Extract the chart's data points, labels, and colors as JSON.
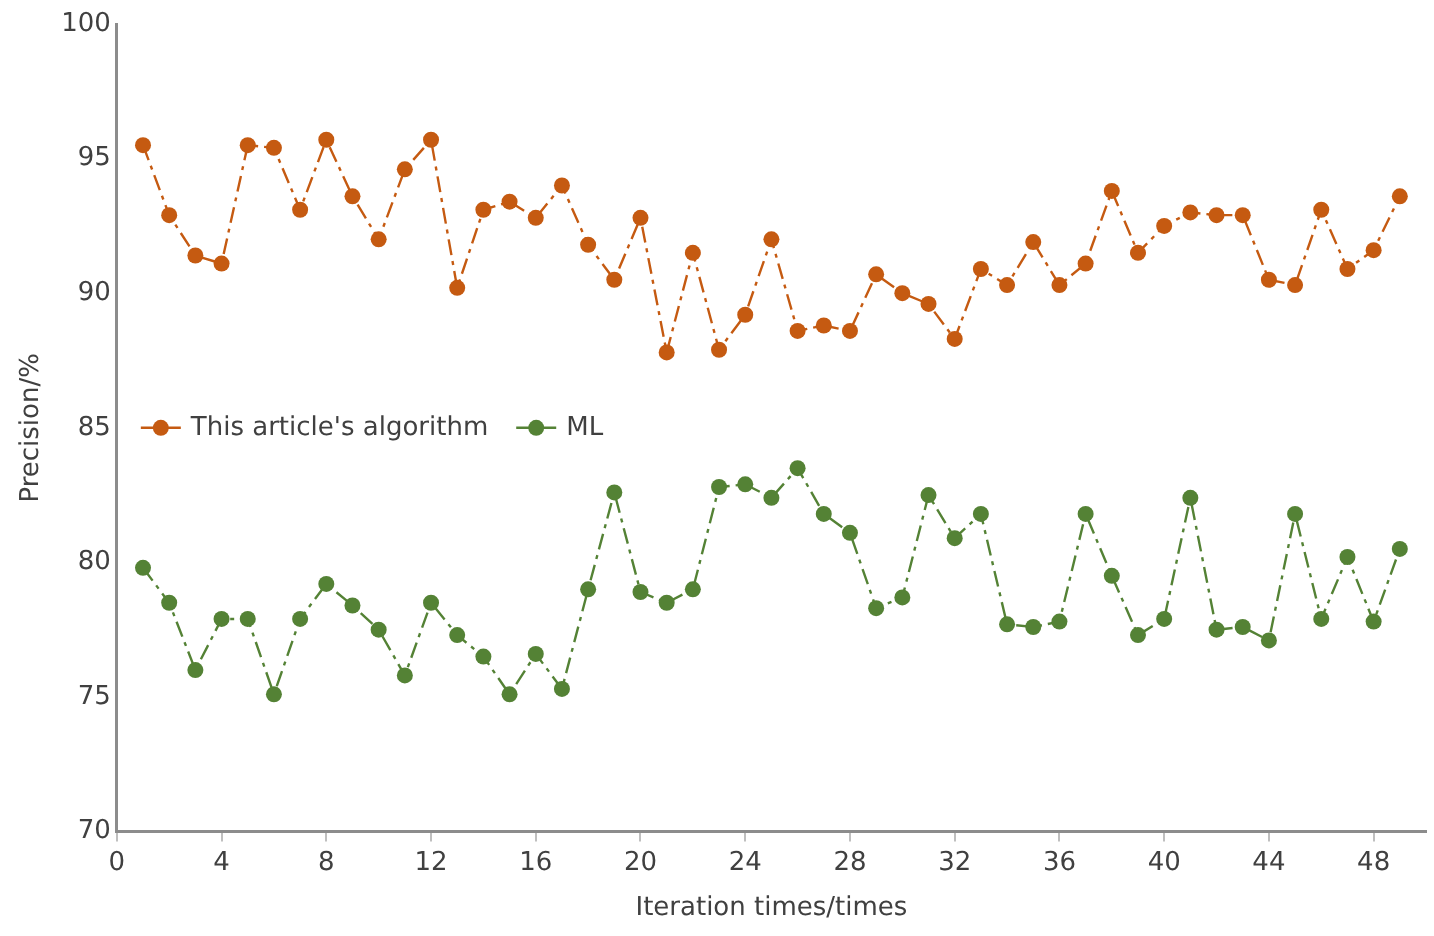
{
  "chart_data": {
    "type": "line",
    "xlabel": "Iteration times/times",
    "ylabel": "Precision/%",
    "x": [
      1,
      2,
      3,
      4,
      5,
      6,
      7,
      8,
      9,
      10,
      11,
      12,
      13,
      14,
      15,
      16,
      17,
      18,
      19,
      20,
      21,
      22,
      23,
      24,
      25,
      26,
      27,
      28,
      29,
      30,
      31,
      32,
      33,
      34,
      35,
      36,
      37,
      38,
      39,
      40,
      41,
      42,
      43,
      44,
      45,
      46,
      47,
      48,
      49
    ],
    "series": [
      {
        "name": "This article's algorithm",
        "color": "#c55a11",
        "values": [
          95.5,
          92.9,
          91.4,
          91.1,
          95.5,
          95.4,
          93.1,
          95.7,
          93.6,
          92.0,
          94.6,
          95.7,
          90.2,
          93.1,
          93.4,
          92.8,
          94.0,
          91.8,
          90.5,
          92.8,
          87.8,
          91.5,
          87.9,
          89.2,
          92.0,
          88.6,
          88.8,
          88.6,
          90.7,
          90.0,
          89.6,
          88.3,
          90.9,
          90.3,
          91.9,
          90.3,
          91.1,
          93.8,
          91.5,
          92.5,
          93.0,
          92.9,
          92.9,
          90.5,
          90.3,
          93.1,
          90.9,
          91.6,
          93.6
        ]
      },
      {
        "name": "ML",
        "color": "#548235",
        "values": [
          79.8,
          78.5,
          76.0,
          77.9,
          77.9,
          75.1,
          77.9,
          79.2,
          78.4,
          77.5,
          75.8,
          78.5,
          77.3,
          76.5,
          75.1,
          76.6,
          75.3,
          79.0,
          82.6,
          78.9,
          78.5,
          79.0,
          82.8,
          82.9,
          82.4,
          83.5,
          81.8,
          81.1,
          78.3,
          78.7,
          82.5,
          80.9,
          81.8,
          77.7,
          77.6,
          77.8,
          81.8,
          79.5,
          77.3,
          77.9,
          82.4,
          77.5,
          77.6,
          77.1,
          81.8,
          77.9,
          80.2,
          77.8,
          80.5
        ]
      }
    ],
    "xlim": [
      0,
      50
    ],
    "xticks": [
      0,
      4,
      8,
      12,
      16,
      20,
      24,
      28,
      32,
      36,
      40,
      44,
      48
    ],
    "ylim": [
      70,
      100
    ],
    "yticks": [
      70,
      75,
      80,
      85,
      90,
      95,
      100
    ],
    "grid": false,
    "legend": "left",
    "marker": "circle",
    "line_style": "dashed"
  }
}
